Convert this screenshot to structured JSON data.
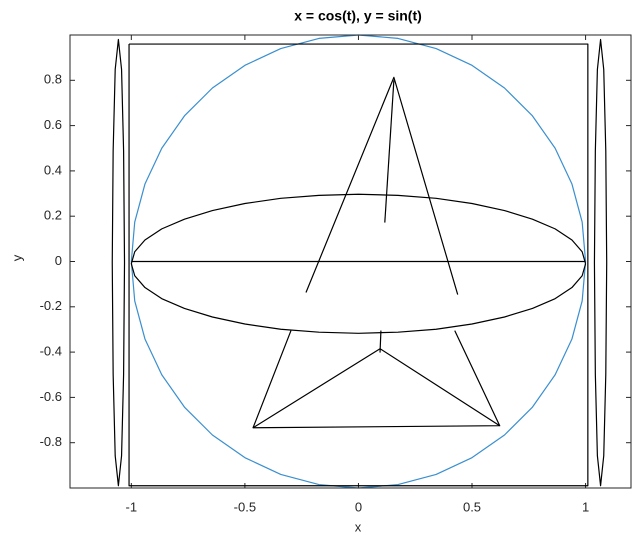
{
  "chart_data": {
    "type": "line",
    "title": "x = cos(t), y = sin(t)",
    "xlabel": "x",
    "ylabel": "y",
    "xlim": [
      -1.27,
      1.2
    ],
    "ylim": [
      -1,
      1
    ],
    "xticks": [
      -1,
      -0.5,
      0,
      0.5,
      1
    ],
    "yticks": [
      -0.8,
      -0.6,
      -0.4,
      -0.2,
      0,
      0.2,
      0.4,
      0.6,
      0.8
    ],
    "grid": false,
    "series": [
      {
        "color": "#3a8fd0",
        "x": [
          1,
          0.985,
          0.94,
          0.866,
          0.766,
          0.643,
          0.5,
          0.342,
          0.174,
          0,
          -0.174,
          -0.342,
          -0.5,
          -0.643,
          -0.766,
          -0.866,
          -0.94,
          -0.985,
          -1,
          -0.985,
          -0.94,
          -0.866,
          -0.766,
          -0.643,
          -0.5,
          -0.342,
          -0.174,
          0,
          0.174,
          0.342,
          0.5,
          0.643,
          0.766,
          0.866,
          0.94,
          0.985,
          1
        ],
        "values": [
          0,
          0.174,
          0.342,
          0.5,
          0.643,
          0.766,
          0.866,
          0.94,
          0.985,
          1,
          0.985,
          0.94,
          0.866,
          0.766,
          0.643,
          0.5,
          0.342,
          0.174,
          0,
          -0.174,
          -0.342,
          -0.5,
          -0.643,
          -0.766,
          -0.866,
          -0.94,
          -0.985,
          -1,
          -0.985,
          -0.94,
          -0.866,
          -0.766,
          -0.643,
          -0.5,
          -0.342,
          -0.174,
          0
        ]
      },
      {
        "color": "#000000",
        "x": [
          -1.01,
          1.01,
          1.01,
          -1.01,
          -1.01
        ],
        "values": [
          0.96,
          0.96,
          -0.99,
          -0.99,
          0.96
        ]
      },
      {
        "color": "#000000",
        "x": [
          -1.03,
          -1.034,
          -1.043,
          -1.057,
          -1.071,
          -1.08,
          -1.084,
          -1.08,
          -1.071,
          -1.057,
          -1.043,
          -1.034,
          -1.03
        ],
        "values": [
          -0.005,
          0.488,
          0.848,
          0.98,
          0.848,
          0.488,
          -0.005,
          -0.498,
          -0.858,
          -0.99,
          -0.858,
          -0.498,
          -0.005
        ]
      },
      {
        "color": "#000000",
        "x": [
          1.093,
          1.089,
          1.08,
          1.066,
          1.052,
          1.043,
          1.039,
          1.043,
          1.052,
          1.066,
          1.08,
          1.089,
          1.093
        ],
        "values": [
          -0.005,
          0.488,
          0.848,
          0.98,
          0.848,
          0.488,
          -0.005,
          -0.498,
          -0.858,
          -0.99,
          -0.858,
          -0.498,
          -0.005
        ]
      },
      {
        "color": "#000000",
        "x": [
          1,
          0.985,
          0.94,
          0.866,
          0.766,
          0.643,
          0.5,
          0.342,
          0.174,
          0,
          -0.174,
          -0.342,
          -0.5,
          -0.643,
          -0.766,
          -0.866,
          -0.94,
          -0.985,
          -1,
          -0.985,
          -0.94,
          -0.866,
          -0.766,
          -0.643,
          -0.5,
          -0.342,
          -0.174,
          0,
          0.174,
          0.342,
          0.5,
          0.643,
          0.766,
          0.866,
          0.94,
          0.985,
          1
        ],
        "values": [
          -0.01,
          0.043,
          0.095,
          0.144,
          0.187,
          0.225,
          0.256,
          0.279,
          0.292,
          0.297,
          0.292,
          0.279,
          0.256,
          0.225,
          0.187,
          0.144,
          0.095,
          0.043,
          -0.01,
          -0.063,
          -0.115,
          -0.164,
          -0.207,
          -0.245,
          -0.276,
          -0.299,
          -0.312,
          -0.317,
          -0.312,
          -0.299,
          -0.276,
          -0.245,
          -0.207,
          -0.164,
          -0.115,
          -0.063,
          -0.01
        ]
      },
      {
        "color": "#000000",
        "x": [
          -1,
          1
        ],
        "values": [
          0,
          0
        ]
      },
      {
        "color": "#000000",
        "x": [
          -0.231,
          0.156,
          0.437
        ],
        "values": [
          -0.137,
          0.813,
          -0.146
        ]
      },
      {
        "color": "#000000",
        "x": [
          0.156,
          0.116
        ],
        "values": [
          0.8,
          0.172
        ]
      },
      {
        "color": "#000000",
        "x": [
          -0.297,
          -0.464,
          0.622,
          0.424
        ],
        "values": [
          -0.305,
          -0.734,
          -0.725,
          -0.305
        ]
      },
      {
        "color": "#000000",
        "x": [
          -0.464,
          0.095,
          0.622
        ],
        "values": [
          -0.734,
          -0.385,
          -0.725
        ]
      },
      {
        "color": "#000000",
        "x": [
          0.099,
          0.095
        ],
        "values": [
          -0.305,
          -0.402
        ]
      }
    ]
  }
}
